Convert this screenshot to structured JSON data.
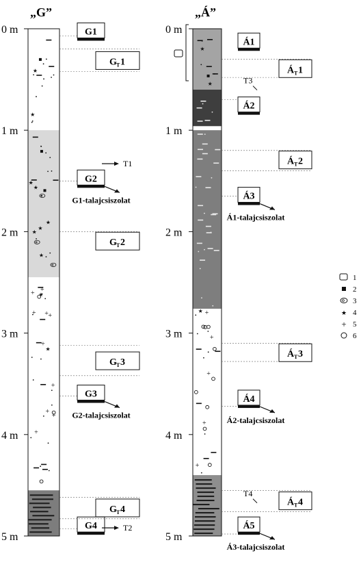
{
  "columns": [
    {
      "id": "G",
      "title": "„G”",
      "depth_labels": [
        "0 m",
        "1 m",
        "2 m",
        "3 m",
        "4 m",
        "5 m"
      ],
      "layers": [
        {
          "from": 0.0,
          "to": 1.0,
          "fill": "#ffffff",
          "pattern": "rich"
        },
        {
          "from": 1.0,
          "to": 2.45,
          "fill": "#d9d9d9",
          "pattern": "rich"
        },
        {
          "from": 2.45,
          "to": 4.55,
          "fill": "#ffffff",
          "pattern": "plus"
        },
        {
          "from": 4.55,
          "to": 5.0,
          "fill": "#7d7d7d",
          "pattern": "bands"
        }
      ],
      "samples": [
        {
          "label": "G1",
          "depth": 0.03,
          "kind": "sample",
          "line": 0.07
        },
        {
          "label": "G2",
          "depth": 1.48,
          "kind": "sample",
          "line": 1.5,
          "arrow": "G1-talajcsiszolat"
        },
        {
          "label": "G3",
          "depth": 3.6,
          "kind": "sample",
          "line": 3.62,
          "arrow": "G2-talajcsiszolat"
        },
        {
          "label": "G4",
          "depth": 4.9,
          "kind": "sample",
          "line": 4.93
        },
        {
          "main": "G",
          "sub": "T",
          "num": "1",
          "depth": 0.32,
          "kind": "tsample",
          "line": 0.2,
          "line2": 0.42
        },
        {
          "main": "G",
          "sub": "T",
          "num": "2",
          "depth": 2.1,
          "kind": "tsample",
          "line": 2.0
        },
        {
          "main": "G",
          "sub": "T",
          "num": "3",
          "depth": 3.28,
          "kind": "tsample",
          "line": 3.12,
          "line2": 3.42
        },
        {
          "main": "G",
          "sub": "T",
          "num": "4",
          "depth": 4.73,
          "kind": "tsample",
          "line": 4.62,
          "line2": 4.83
        }
      ],
      "t_labels": [
        {
          "label": "T1",
          "depth": 1.33
        },
        {
          "label": "T2",
          "depth": 4.92
        }
      ]
    },
    {
      "id": "A",
      "title": "„Á”",
      "depth_labels": [
        "0 m",
        "1 m",
        "2 m",
        "3 m",
        "4 m",
        "5 m"
      ],
      "layers": [
        {
          "from": 0.0,
          "to": 0.6,
          "fill": "#a4a4a4",
          "pattern": "rich"
        },
        {
          "from": 0.6,
          "to": 0.96,
          "fill": "#3e3e3e",
          "pattern": "dark"
        },
        {
          "from": 1.0,
          "to": 2.76,
          "fill": "#7e7e7e",
          "pattern": "dash"
        },
        {
          "from": 2.76,
          "to": 4.4,
          "fill": "#ffffff",
          "pattern": "circles"
        },
        {
          "from": 4.4,
          "to": 5.0,
          "fill": "#8e8e8e",
          "pattern": "bands"
        }
      ],
      "samples": [
        {
          "label": "Á1",
          "depth": 0.13,
          "kind": "sample"
        },
        {
          "label": "Á2",
          "depth": 0.76,
          "kind": "sample",
          "line": 0.7
        },
        {
          "label": "Á3",
          "depth": 1.65,
          "kind": "sample",
          "line": 1.65,
          "arrow": "Á1-talajcsiszolat"
        },
        {
          "label": "Á4",
          "depth": 3.65,
          "kind": "sample",
          "line": 3.72,
          "arrow": "Á2-talajcsiszolat"
        },
        {
          "label": "Á5",
          "depth": 4.9,
          "kind": "sample",
          "line": 4.98,
          "arrow": "Á3-talajcsiszolat"
        },
        {
          "main": "Á",
          "sub": "T",
          "num": "1",
          "depth": 0.4,
          "kind": "tsample",
          "line": 0.3,
          "line2": 0.48
        },
        {
          "main": "Á",
          "sub": "T",
          "num": "2",
          "depth": 1.3,
          "kind": "tsample",
          "line": 1.2,
          "line2": 1.4
        },
        {
          "main": "Á",
          "sub": "T",
          "num": "3",
          "depth": 3.2,
          "kind": "tsample",
          "line": 3.1,
          "line2": 3.28
        },
        {
          "main": "Á",
          "sub": "T",
          "num": "4",
          "depth": 4.66,
          "kind": "tsample",
          "line": 4.55,
          "line2": 4.76
        }
      ],
      "t_labels": [
        {
          "label": "T3",
          "depth": 0.51
        },
        {
          "label": "T4",
          "depth": 4.58
        }
      ]
    }
  ],
  "legend": [
    {
      "num": "1",
      "icon": "rect-symbol"
    },
    {
      "num": "2",
      "icon": "square"
    },
    {
      "num": "3",
      "icon": "snail"
    },
    {
      "num": "4",
      "icon": "star"
    },
    {
      "num": "5",
      "icon": "plus"
    },
    {
      "num": "6",
      "icon": "circle"
    }
  ]
}
